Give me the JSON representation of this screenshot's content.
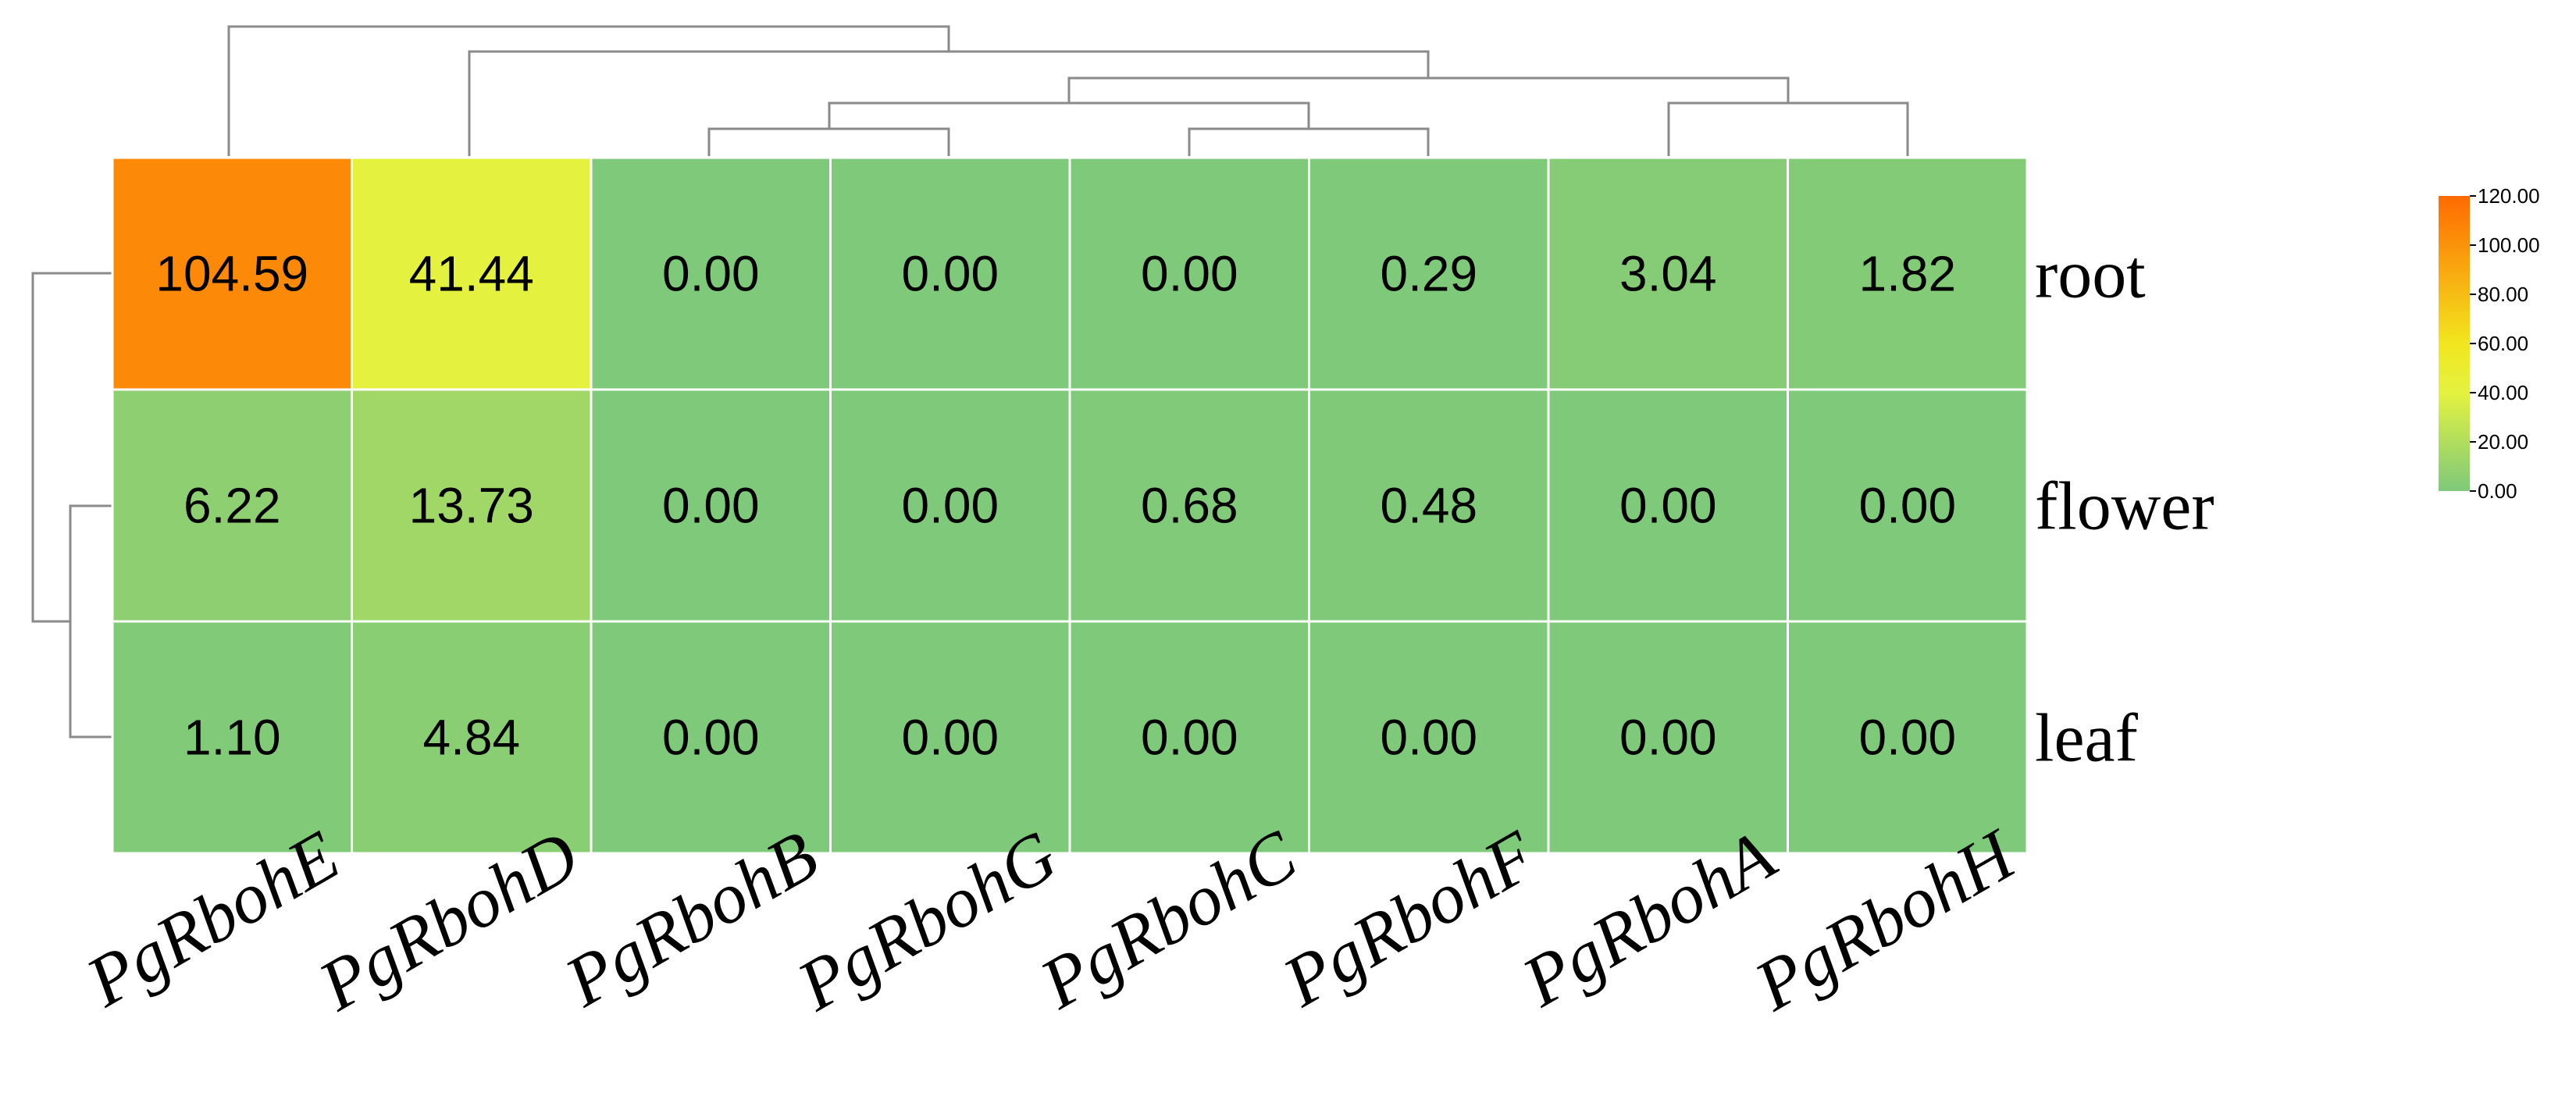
{
  "chart_data": {
    "type": "heatmap",
    "title": "",
    "xlabel": "",
    "ylabel": "",
    "columns": [
      "PgRbohE",
      "PgRbohD",
      "PgRbohB",
      "PgRbohG",
      "PgRbohC",
      "PgRbohF",
      "PgRbohA",
      "PgRbohH"
    ],
    "rows": [
      "root",
      "flower",
      "leaf"
    ],
    "values": [
      [
        104.59,
        41.44,
        0.0,
        0.0,
        0.0,
        0.29,
        3.04,
        1.82
      ],
      [
        6.22,
        13.73,
        0.0,
        0.0,
        0.68,
        0.48,
        0.0,
        0.0
      ],
      [
        1.1,
        4.84,
        0.0,
        0.0,
        0.0,
        0.0,
        0.0,
        0.0
      ]
    ],
    "value_labels": [
      [
        "104.59",
        "41.44",
        "0.00",
        "0.00",
        "0.00",
        "0.29",
        "3.04",
        "1.82"
      ],
      [
        "6.22",
        "13.73",
        "0.00",
        "0.00",
        "0.68",
        "0.48",
        "0.00",
        "0.00"
      ],
      [
        "1.10",
        "4.84",
        "0.00",
        "0.00",
        "0.00",
        "0.00",
        "0.00",
        "0.00"
      ]
    ],
    "color_scale": {
      "min": 0,
      "max": 120,
      "stops": [
        {
          "value": 0,
          "color": "#7ec97a"
        },
        {
          "value": 40,
          "color": "#e3f240"
        },
        {
          "value": 60,
          "color": "#f2e61e"
        },
        {
          "value": 120,
          "color": "#ff6a00"
        }
      ]
    },
    "legend": {
      "placement": "right",
      "ticks": [
        "120.00",
        "100.00",
        "80.00",
        "60.00",
        "40.00",
        "20.00",
        "0.00"
      ]
    },
    "dendrograms": [
      "columns-top",
      "rows-left"
    ]
  }
}
